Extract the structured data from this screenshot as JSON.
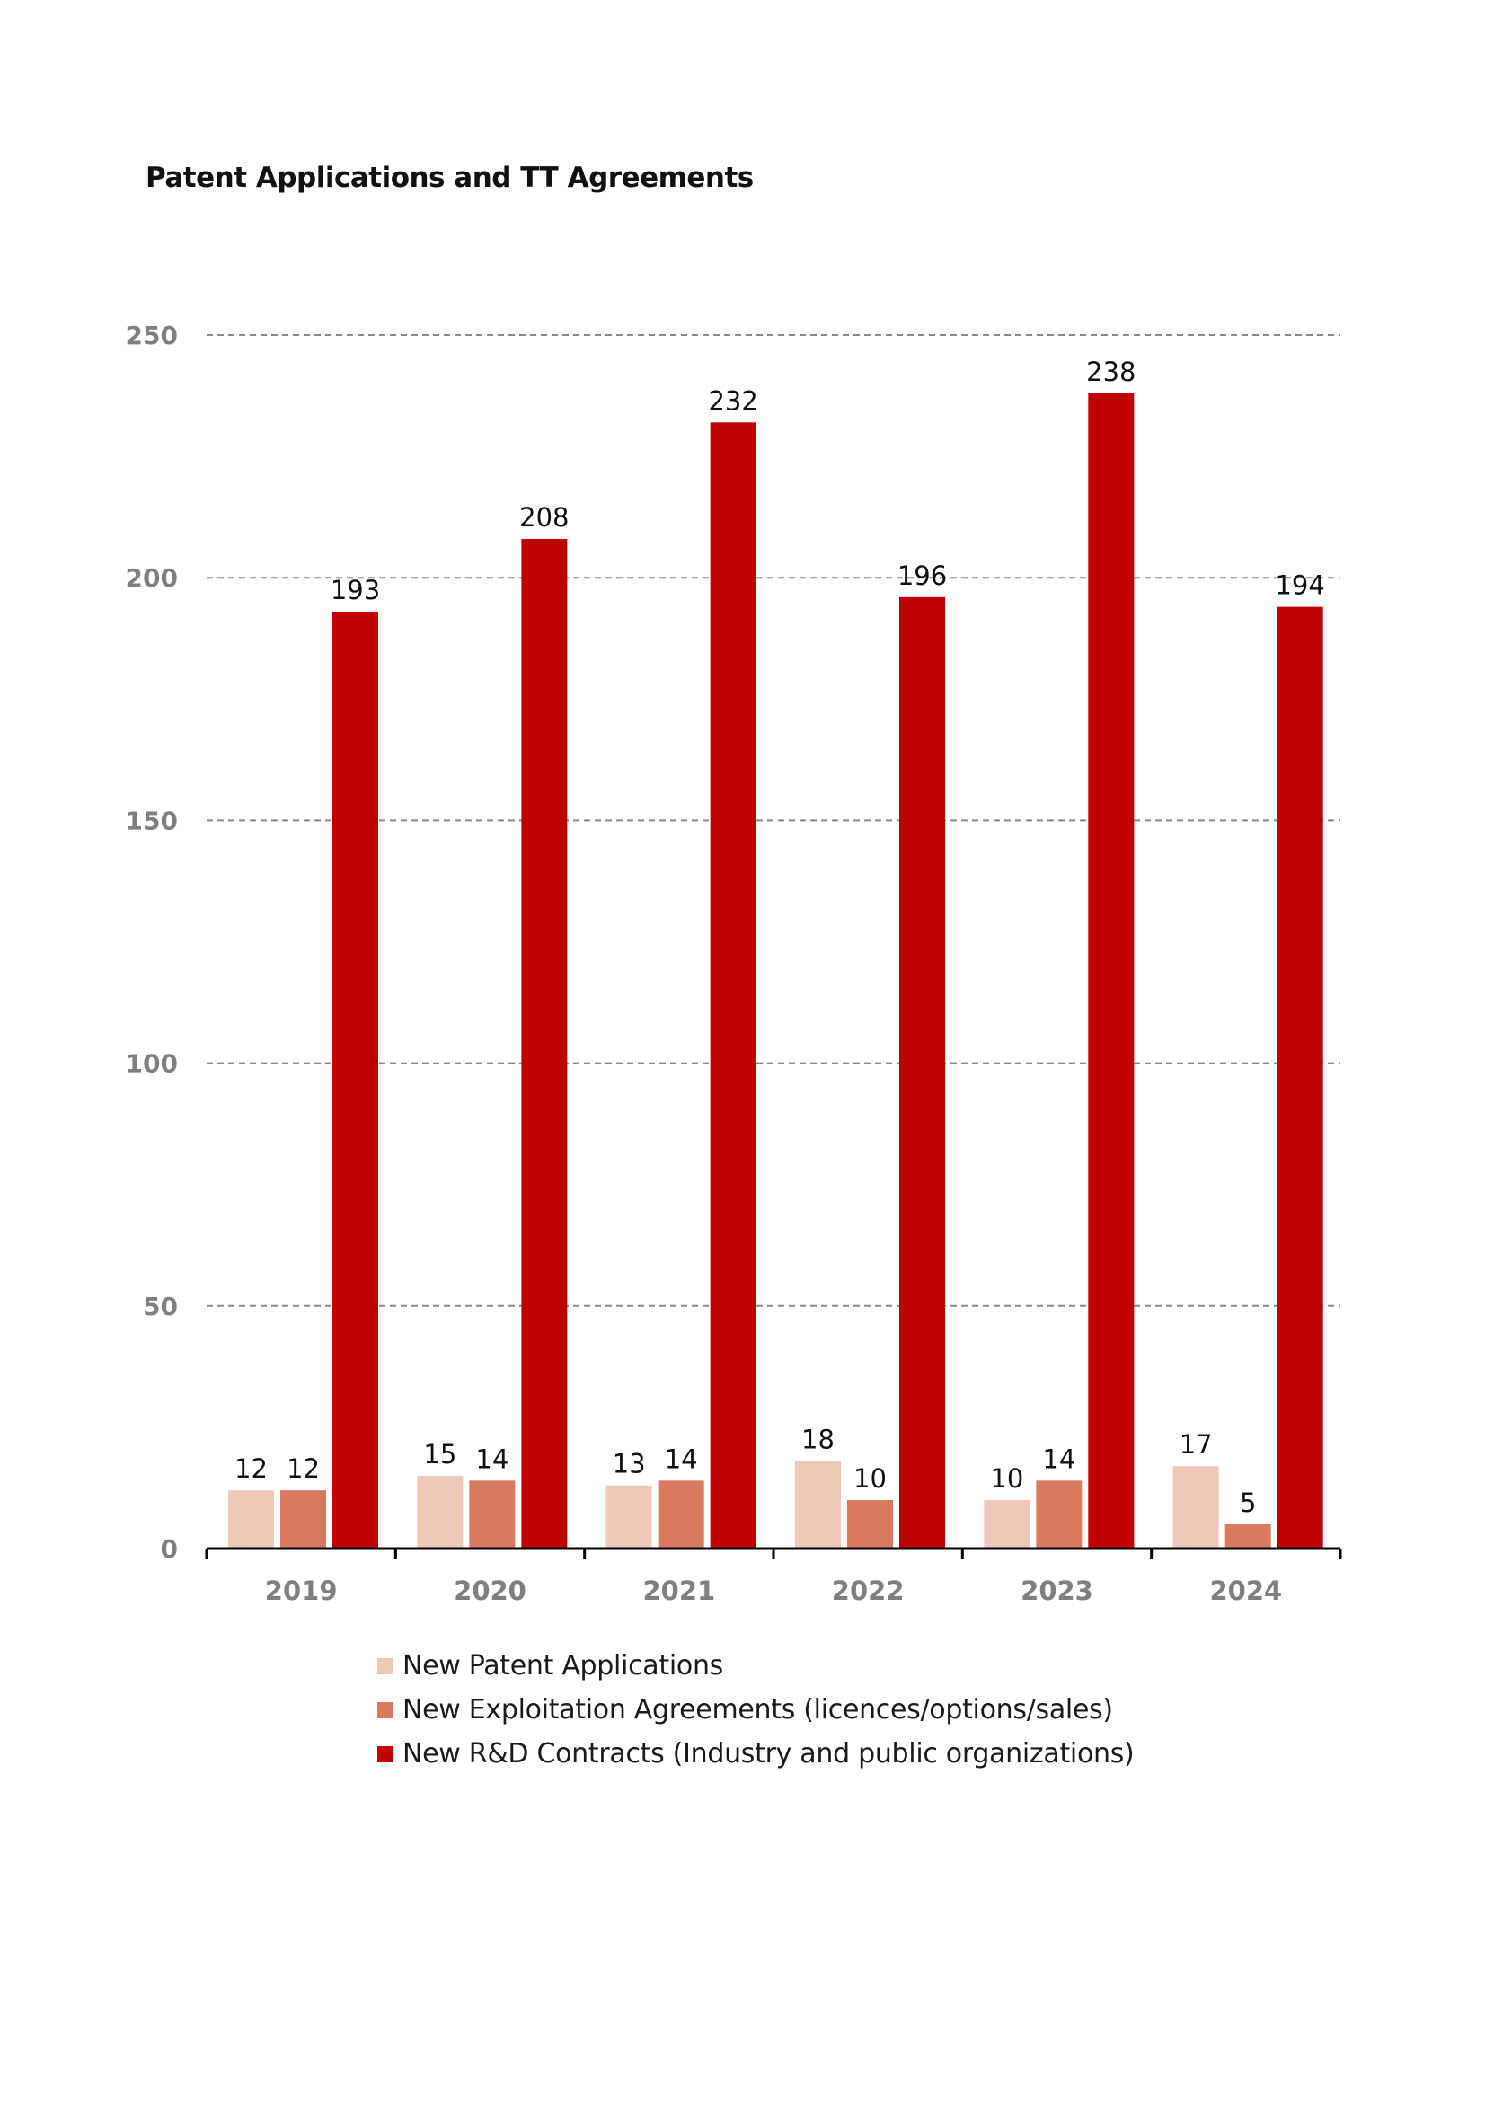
{
  "chart_data": {
    "type": "bar",
    "title": "Patent Applications and TT Agreements",
    "xlabel": "",
    "ylabel": "",
    "categories": [
      "2019",
      "2020",
      "2021",
      "2022",
      "2023",
      "2024"
    ],
    "ylim": [
      0,
      250
    ],
    "yticks": [
      "0",
      "50",
      "100",
      "150",
      "200",
      "250"
    ],
    "grid": true,
    "legend_position": "bottom",
    "series": [
      {
        "name": "New Patent Applications",
        "color": "#efc8ba",
        "values": [
          12,
          15,
          13,
          18,
          10,
          17
        ]
      },
      {
        "name": "New Exploitation Agreements (licences/options/sales)",
        "color": "#d97a60",
        "values": [
          12,
          14,
          14,
          10,
          14,
          5
        ]
      },
      {
        "name": "New R&D Contracts (Industry and public organizations)",
        "color": "#c00000",
        "values": [
          193,
          208,
          232,
          196,
          238,
          194
        ]
      }
    ]
  }
}
